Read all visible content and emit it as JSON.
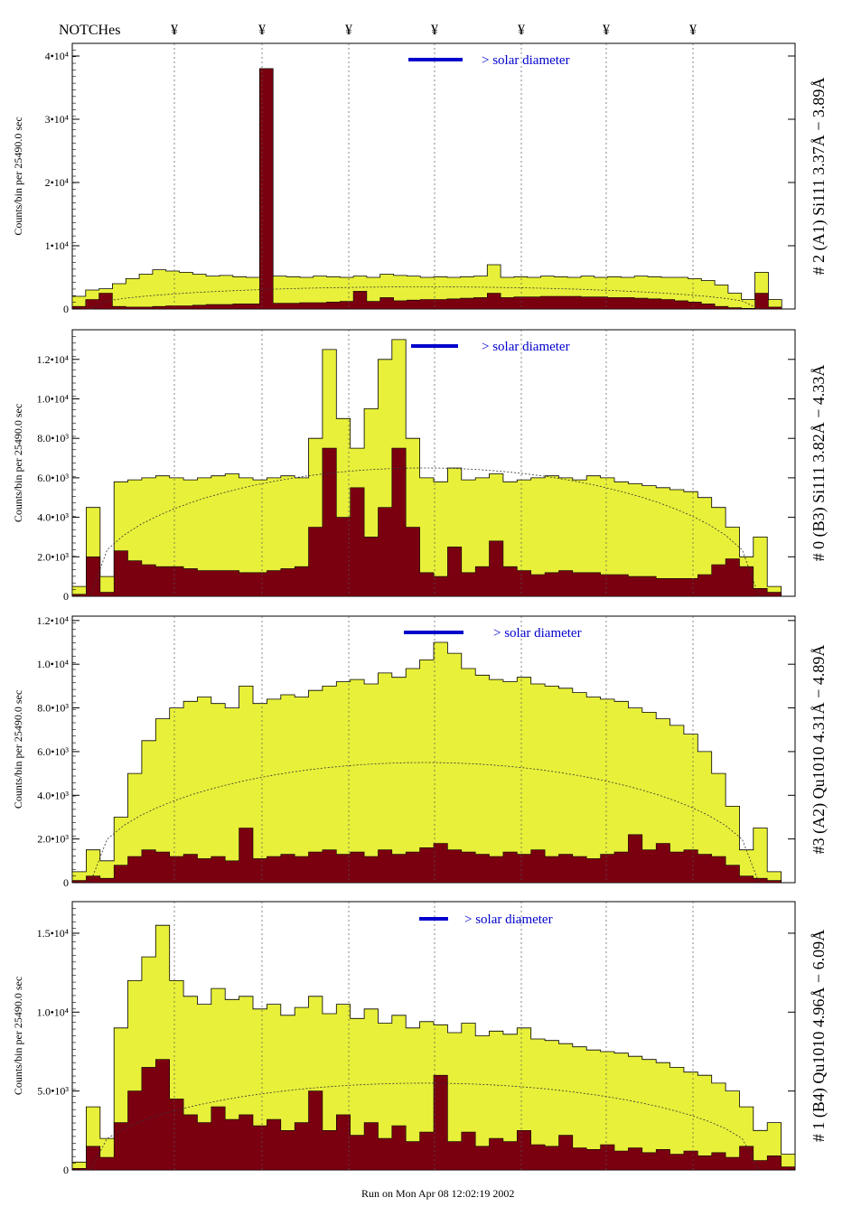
{
  "header": {
    "notches_label": "NOTCHes",
    "notch_symbol": "¥",
    "notch_count": 7
  },
  "footer": {
    "run_text": "Run on Mon Apr 08 12:02:19 2002"
  },
  "colors": {
    "yellow_fill": "#e8f03a",
    "dark_fill": "#7a0010",
    "line": "#000000",
    "legend": "#0000cc"
  },
  "chart_data": [
    {
      "type": "area",
      "title": "# 2 (A1) Si111  3.37Å − 3.89Å",
      "ylabel": "Counts/bin per  25490.0 sec",
      "legend": "> solar diameter",
      "ylim": [
        0,
        42000
      ],
      "ytick_labels": [
        "0",
        "1•10⁴",
        "2•10⁴",
        "3•10⁴",
        "4•10⁴"
      ],
      "ytick_values": [
        0,
        10000,
        20000,
        30000,
        40000
      ],
      "series": [
        {
          "name": "total",
          "values": [
            2000,
            3000,
            3200,
            4000,
            4800,
            5500,
            6200,
            6000,
            5800,
            5500,
            5200,
            5300,
            5100,
            5000,
            38000,
            5200,
            5100,
            5000,
            5200,
            5100,
            5000,
            5200,
            5000,
            5500,
            5300,
            5200,
            5000,
            5100,
            5000,
            5100,
            5200,
            7000,
            5000,
            5100,
            5000,
            5200,
            5100,
            5000,
            5200,
            5000,
            5100,
            5000,
            5200,
            5100,
            5000,
            5000,
            4800,
            4500,
            3800,
            2500,
            1500,
            5800,
            1500,
            0
          ]
        },
        {
          "name": "dark",
          "values": [
            400,
            1500,
            2500,
            400,
            300,
            300,
            400,
            500,
            500,
            600,
            700,
            700,
            800,
            800,
            38000,
            900,
            900,
            1000,
            1000,
            1100,
            1200,
            2800,
            1200,
            1800,
            1300,
            1400,
            1500,
            1500,
            1600,
            1700,
            1800,
            2500,
            1800,
            1900,
            1900,
            2000,
            2000,
            2000,
            1900,
            1900,
            1800,
            1800,
            1700,
            1600,
            1500,
            1300,
            1100,
            800,
            400,
            200,
            100,
            2500,
            300,
            0
          ]
        }
      ]
    },
    {
      "type": "area",
      "title": "# 0 (B3) Si111  3.82Å − 4.33Å",
      "ylabel": "Counts/bin per  25490.0 sec",
      "legend": "> solar diameter",
      "ylim": [
        0,
        13500
      ],
      "ytick_labels": [
        "0",
        "2.0•10³",
        "4.0•10³",
        "6.0•10³",
        "8.0•10³",
        "1.0•10⁴",
        "1.2•10⁴"
      ],
      "ytick_values": [
        0,
        2000,
        4000,
        6000,
        8000,
        10000,
        12000
      ],
      "series": [
        {
          "name": "total",
          "values": [
            500,
            4500,
            1000,
            5800,
            5900,
            6000,
            6100,
            6000,
            5900,
            6000,
            6100,
            6200,
            6000,
            5900,
            6000,
            6100,
            6000,
            8000,
            12500,
            9000,
            7500,
            9500,
            12000,
            13000,
            8000,
            6000,
            5800,
            6500,
            5900,
            6000,
            6200,
            5800,
            5900,
            6000,
            6100,
            6000,
            5900,
            6100,
            6000,
            5800,
            5700,
            5600,
            5500,
            5400,
            5300,
            5000,
            4500,
            3500,
            2000,
            3000,
            500,
            0
          ]
        },
        {
          "name": "dark",
          "values": [
            100,
            2000,
            200,
            2300,
            1800,
            1600,
            1500,
            1500,
            1400,
            1300,
            1300,
            1300,
            1200,
            1200,
            1300,
            1400,
            1500,
            3500,
            7500,
            4000,
            5500,
            3000,
            4500,
            7500,
            3500,
            1200,
            1000,
            2500,
            1200,
            1500,
            2800,
            1500,
            1300,
            1100,
            1200,
            1300,
            1200,
            1200,
            1100,
            1100,
            1000,
            1000,
            900,
            900,
            900,
            1100,
            1600,
            1900,
            1500,
            400,
            200,
            0
          ]
        }
      ]
    },
    {
      "type": "area",
      "title": "#3 (A2) Qu1010  4.31Å − 4.89Å",
      "ylabel": "Counts/bin per  25490.0 sec",
      "legend": "> solar diameter",
      "ylim": [
        0,
        12200
      ],
      "ytick_labels": [
        "0",
        "2.0•10³",
        "4.0•10³",
        "6.0•10³",
        "8.0•10³",
        "1.0•10⁴",
        "1.2•10⁴"
      ],
      "ytick_values": [
        0,
        2000,
        4000,
        6000,
        8000,
        10000,
        12000
      ],
      "series": [
        {
          "name": "total",
          "values": [
            500,
            1500,
            1000,
            3000,
            5000,
            6500,
            7500,
            8000,
            8300,
            8500,
            8200,
            8000,
            9000,
            8200,
            8400,
            8600,
            8500,
            8800,
            9000,
            9200,
            9300,
            9100,
            9600,
            9400,
            9800,
            10200,
            11000,
            10500,
            9800,
            9500,
            9300,
            9200,
            9400,
            9100,
            9000,
            8900,
            8700,
            8500,
            8400,
            8300,
            8000,
            7800,
            7500,
            7200,
            6800,
            6000,
            5000,
            3500,
            1500,
            2500,
            500,
            0
          ]
        },
        {
          "name": "dark",
          "values": [
            100,
            300,
            200,
            800,
            1200,
            1500,
            1400,
            1200,
            1300,
            1100,
            1200,
            1000,
            2500,
            1100,
            1200,
            1300,
            1200,
            1400,
            1500,
            1300,
            1400,
            1200,
            1500,
            1300,
            1400,
            1600,
            1800,
            1500,
            1400,
            1300,
            1200,
            1400,
            1300,
            1500,
            1200,
            1300,
            1200,
            1100,
            1300,
            1400,
            2200,
            1500,
            1800,
            1400,
            1500,
            1300,
            1200,
            800,
            300,
            200,
            100,
            0
          ]
        }
      ]
    },
    {
      "type": "area",
      "title": "# 1 (B4) Qu1010 4.96Å − 6.09Å",
      "ylabel": "Counts/bin per  25490.0 sec",
      "legend": "> solar diameter",
      "ylim": [
        0,
        17000
      ],
      "ytick_labels": [
        "0",
        "5.0•10³",
        "1.0•10⁴",
        "1.5•10⁴"
      ],
      "ytick_values": [
        0,
        5000,
        10000,
        15000
      ],
      "series": [
        {
          "name": "total",
          "values": [
            500,
            4000,
            2000,
            9000,
            12000,
            13500,
            15500,
            12000,
            11000,
            10500,
            11500,
            10800,
            11000,
            10200,
            10500,
            9800,
            10300,
            11000,
            9900,
            10500,
            9600,
            10200,
            9300,
            9800,
            9000,
            9400,
            9200,
            8700,
            9300,
            8500,
            8800,
            8600,
            9000,
            8300,
            8200,
            8000,
            7800,
            7600,
            7500,
            7400,
            7200,
            7000,
            6800,
            6500,
            6200,
            6000,
            5500,
            5000,
            4000,
            2500,
            3000,
            1000
          ]
        },
        {
          "name": "dark",
          "values": [
            100,
            1500,
            800,
            3000,
            5000,
            6500,
            7000,
            4500,
            3500,
            3000,
            4000,
            3200,
            3500,
            2800,
            3200,
            2500,
            3000,
            5000,
            2500,
            3500,
            2200,
            3000,
            2000,
            2800,
            1800,
            2400,
            6000,
            1800,
            2400,
            1500,
            2000,
            1800,
            2500,
            1600,
            1500,
            2200,
            1400,
            1300,
            1600,
            1200,
            1400,
            1100,
            1300,
            1000,
            1200,
            900,
            1100,
            800,
            1500,
            600,
            900,
            200
          ]
        }
      ]
    }
  ]
}
